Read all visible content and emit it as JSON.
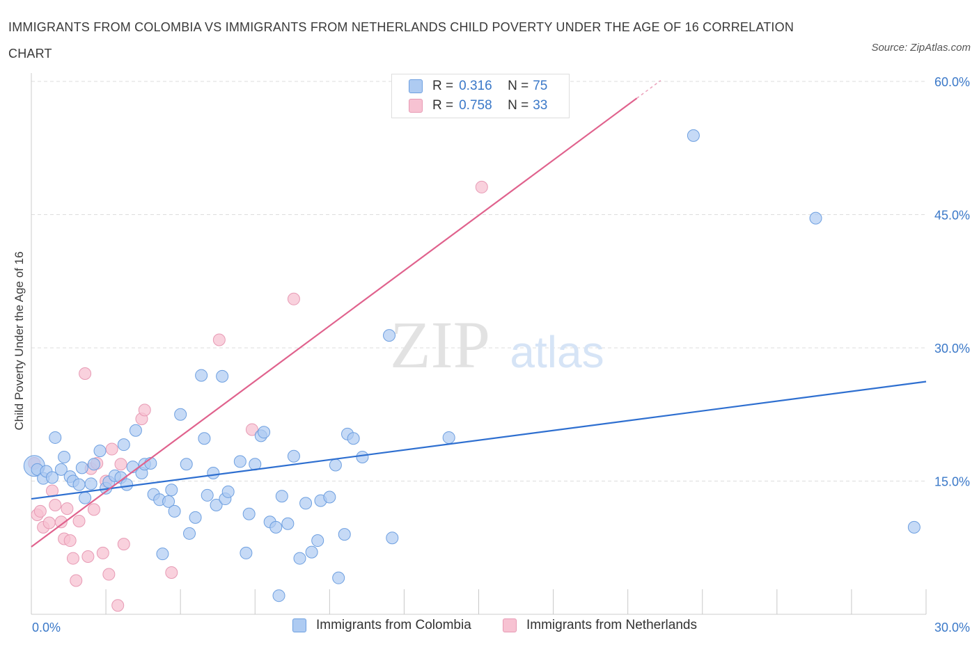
{
  "title": "IMMIGRANTS FROM COLOMBIA VS IMMIGRANTS FROM NETHERLANDS CHILD POVERTY UNDER THE AGE OF 16 CORRELATION CHART",
  "source": "Source: ZipAtlas.com",
  "watermark": {
    "zip": "ZIP",
    "atlas": "atlas"
  },
  "legend": {
    "rows": [
      {
        "r_label": "R =",
        "r_value": "0.316",
        "n_label": "N =",
        "n_value": "75"
      },
      {
        "r_label": "R =",
        "r_value": "0.758",
        "n_label": "N =",
        "n_value": "33"
      }
    ]
  },
  "colors": {
    "colombia_fill": "#aecbf2",
    "colombia_stroke": "#6d9fe0",
    "colombia_line": "#2e6fd0",
    "netherlands_fill": "#f7c2d2",
    "netherlands_stroke": "#e79ab4",
    "netherlands_line": "#e0628d",
    "tick_label": "#3a78c8",
    "grid": "#dddddd"
  },
  "chart_data": {
    "type": "scatter",
    "title": "IMMIGRANTS FROM COLOMBIA VS IMMIGRANTS FROM NETHERLANDS CHILD POVERTY UNDER THE AGE OF 16 CORRELATION CHART",
    "xlabel": "",
    "ylabel": "Child Poverty Under the Age of 16",
    "xlim": [
      0,
      30
    ],
    "ylim": [
      0,
      60
    ],
    "x_tick_labels": [
      "0.0%",
      "30.0%"
    ],
    "y_ticks": [
      15,
      30,
      45,
      60
    ],
    "y_tick_labels": [
      "15.0%",
      "30.0%",
      "45.0%",
      "60.0%"
    ],
    "grid": true,
    "legend_position": "top-center",
    "series": [
      {
        "name": "Immigrants from Colombia",
        "R": 0.316,
        "N": 75,
        "trend": {
          "x": [
            0,
            30
          ],
          "y": [
            13.0,
            26.2
          ]
        },
        "points": [
          [
            0.1,
            16.7
          ],
          [
            0.2,
            16.3
          ],
          [
            0.4,
            15.3
          ],
          [
            0.5,
            16.1
          ],
          [
            0.7,
            15.4
          ],
          [
            0.8,
            19.9
          ],
          [
            1.0,
            16.3
          ],
          [
            1.1,
            17.7
          ],
          [
            1.3,
            15.5
          ],
          [
            1.4,
            15.0
          ],
          [
            1.6,
            14.6
          ],
          [
            1.7,
            16.5
          ],
          [
            1.8,
            13.1
          ],
          [
            2.0,
            14.7
          ],
          [
            2.1,
            16.9
          ],
          [
            2.3,
            18.4
          ],
          [
            2.5,
            14.2
          ],
          [
            2.6,
            14.9
          ],
          [
            2.8,
            15.6
          ],
          [
            3.0,
            15.4
          ],
          [
            3.1,
            19.1
          ],
          [
            3.2,
            14.6
          ],
          [
            3.4,
            16.6
          ],
          [
            3.5,
            20.7
          ],
          [
            3.7,
            15.9
          ],
          [
            3.8,
            16.9
          ],
          [
            4.0,
            17.0
          ],
          [
            4.1,
            13.5
          ],
          [
            4.3,
            12.9
          ],
          [
            4.4,
            6.8
          ],
          [
            4.6,
            12.7
          ],
          [
            4.7,
            14.0
          ],
          [
            4.8,
            11.6
          ],
          [
            5.0,
            22.5
          ],
          [
            5.2,
            16.9
          ],
          [
            5.3,
            9.1
          ],
          [
            5.5,
            10.9
          ],
          [
            5.7,
            26.9
          ],
          [
            5.8,
            19.8
          ],
          [
            5.9,
            13.4
          ],
          [
            6.1,
            15.9
          ],
          [
            6.2,
            12.3
          ],
          [
            6.4,
            26.8
          ],
          [
            6.5,
            13.0
          ],
          [
            6.6,
            13.8
          ],
          [
            7.0,
            17.2
          ],
          [
            7.2,
            6.9
          ],
          [
            7.3,
            11.3
          ],
          [
            7.5,
            16.9
          ],
          [
            7.7,
            20.1
          ],
          [
            7.8,
            20.5
          ],
          [
            8.0,
            10.4
          ],
          [
            8.2,
            9.8
          ],
          [
            8.3,
            2.1
          ],
          [
            8.4,
            13.3
          ],
          [
            8.6,
            10.2
          ],
          [
            8.8,
            17.8
          ],
          [
            9.0,
            6.3
          ],
          [
            9.2,
            12.5
          ],
          [
            9.4,
            7.0
          ],
          [
            9.6,
            8.3
          ],
          [
            9.7,
            12.8
          ],
          [
            10.0,
            13.2
          ],
          [
            10.2,
            16.8
          ],
          [
            10.3,
            4.1
          ],
          [
            10.5,
            9.0
          ],
          [
            10.6,
            20.3
          ],
          [
            10.8,
            19.8
          ],
          [
            11.1,
            17.7
          ],
          [
            12.0,
            31.4
          ],
          [
            12.1,
            8.6
          ],
          [
            14.0,
            19.9
          ],
          [
            22.2,
            53.9
          ],
          [
            26.3,
            44.6
          ],
          [
            29.6,
            9.8
          ]
        ]
      },
      {
        "name": "Immigrants from Netherlands",
        "R": 0.758,
        "N": 33,
        "trend": {
          "x": [
            0,
            20.3
          ],
          "y": [
            7.6,
            58.1
          ]
        },
        "points": [
          [
            0.1,
            17.0
          ],
          [
            0.2,
            11.2
          ],
          [
            0.3,
            11.6
          ],
          [
            0.4,
            9.8
          ],
          [
            0.6,
            10.3
          ],
          [
            0.7,
            13.9
          ],
          [
            0.8,
            12.3
          ],
          [
            1.0,
            10.4
          ],
          [
            1.1,
            8.5
          ],
          [
            1.2,
            11.9
          ],
          [
            1.3,
            8.3
          ],
          [
            1.4,
            6.3
          ],
          [
            1.5,
            3.8
          ],
          [
            1.6,
            10.5
          ],
          [
            1.8,
            27.1
          ],
          [
            1.9,
            6.5
          ],
          [
            2.0,
            16.4
          ],
          [
            2.1,
            11.8
          ],
          [
            2.2,
            17.0
          ],
          [
            2.4,
            6.9
          ],
          [
            2.5,
            15.0
          ],
          [
            2.6,
            4.5
          ],
          [
            2.7,
            18.6
          ],
          [
            2.9,
            1.0
          ],
          [
            3.0,
            16.9
          ],
          [
            3.1,
            7.9
          ],
          [
            3.7,
            22.0
          ],
          [
            3.8,
            23.0
          ],
          [
            4.7,
            4.7
          ],
          [
            6.3,
            30.9
          ],
          [
            7.4,
            20.8
          ],
          [
            8.8,
            35.5
          ],
          [
            15.1,
            48.1
          ]
        ]
      }
    ]
  },
  "bottom_legend": {
    "items": [
      {
        "label": "Immigrants from Colombia"
      },
      {
        "label": "Immigrants from Netherlands"
      }
    ]
  }
}
